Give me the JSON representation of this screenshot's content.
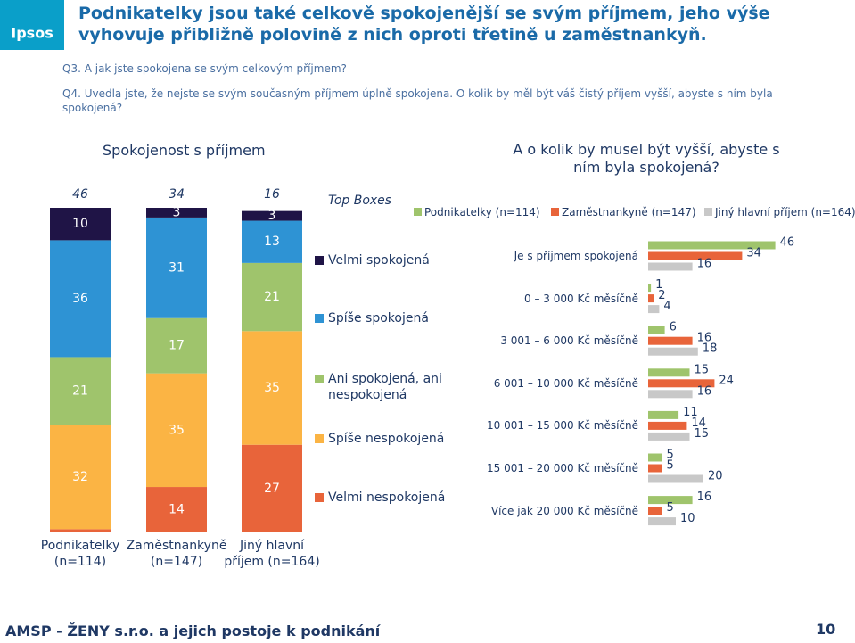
{
  "logo": "Ipsos",
  "header": {
    "title": "Podnikatelky jsou také celkově spokojenější se svým příjmem, jeho výše vyhovuje přibližně polovině z nich oproti třetině u zaměstnankyň.",
    "questions": [
      "Q3. A jak jste spokojena se svým celkovým příjmem?",
      "Q4. Uvedla jste, že nejste se svým současným příjmem úplně spokojena. O kolik by měl být váš čistý příjem vyšší, abyste s ním byla spokojená?"
    ]
  },
  "footer": {
    "text": "AMSP - ŽENY s.r.o. a jejich postoje k podnikání",
    "page": "10"
  },
  "chart_data": [
    {
      "type": "stacked_bar",
      "title": "Spokojenost s příjmem",
      "categories": [
        "Podnikatelky (n=114)",
        "Zaměstnankyně (n=147)",
        "Jiný hlavní příjem (n=164)"
      ],
      "top_boxes": {
        "label": "Top Boxes",
        "values": [
          46,
          34,
          16
        ]
      },
      "series": [
        {
          "name": "Velmi spokojená",
          "color": "#1f1446",
          "values": [
            10,
            3,
            3
          ]
        },
        {
          "name": "Spíše spokojená",
          "color": "#2e93d4",
          "values": [
            36,
            31,
            13
          ]
        },
        {
          "name": "Ani spokojená, ani nespokojená",
          "color": "#9fc46c",
          "values": [
            21,
            17,
            21
          ]
        },
        {
          "name": "Spíše nespokojená",
          "color": "#fbb444",
          "values": [
            32,
            35,
            35
          ]
        },
        {
          "name": "Velmi nespokojená",
          "color": "#e8643a",
          "values": [
            1,
            14,
            27
          ]
        }
      ]
    },
    {
      "type": "hbar",
      "title": "A o kolik by musel být vyšší, abyste s ním byla spokojená?",
      "categories": [
        "Je s příjmem spokojená",
        "0 – 3 000 Kč měsíčně",
        "3 001 – 6 000 Kč měsíčně",
        "6 001 – 10 000 Kč měsíčně",
        "10 001 – 15 000 Kč měsíčně",
        "15 001 – 20 000 Kč měsíčně",
        "Více jak 20 000 Kč měsíčně"
      ],
      "series": [
        {
          "name": "Podnikatelky (n=114)",
          "color": "#9fc46c",
          "values": [
            46,
            1,
            6,
            15,
            11,
            5,
            16
          ]
        },
        {
          "name": "Zaměstnankyně (n=147)",
          "color": "#e8643a",
          "values": [
            34,
            2,
            16,
            24,
            14,
            5,
            5
          ]
        },
        {
          "name": "Jiný hlavní příjem (n=164)",
          "color": "#c8c8c8",
          "values": [
            16,
            4,
            18,
            16,
            15,
            20,
            10
          ]
        }
      ]
    }
  ]
}
